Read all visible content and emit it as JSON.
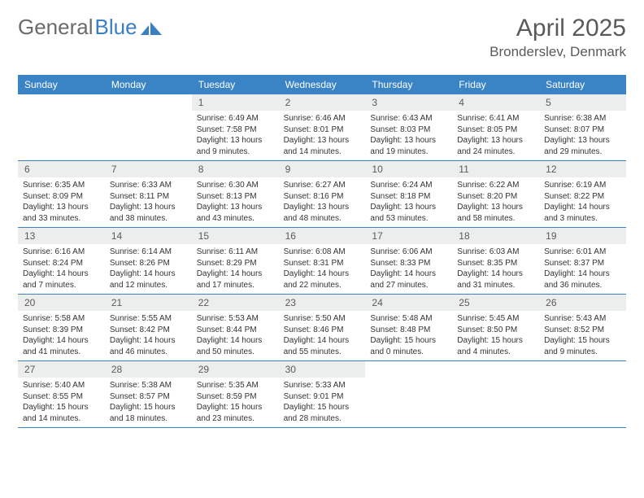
{
  "brand": {
    "part1": "General",
    "part2": "Blue"
  },
  "header": {
    "title": "April 2025",
    "location": "Bronderslev, Denmark"
  },
  "styling": {
    "header_bg": "#3a84c6",
    "header_fg": "#ffffff",
    "daynum_bg": "#eceded",
    "daynum_fg": "#5a5a5a",
    "week_border": "#3a84c6",
    "body_fg": "#333333",
    "title_fg": "#5a5a5a",
    "logo_gray": "#6b6b6b",
    "logo_blue": "#3a7fc4",
    "page_bg": "#ffffff",
    "month_title_fontsize": 30,
    "location_fontsize": 17,
    "dayhead_fontsize": 12,
    "daynum_fontsize": 12,
    "details_fontsize": 10
  },
  "dayNames": [
    "Sunday",
    "Monday",
    "Tuesday",
    "Wednesday",
    "Thursday",
    "Friday",
    "Saturday"
  ],
  "weeks": [
    [
      {
        "empty": true
      },
      {
        "empty": true
      },
      {
        "n": "1",
        "sunrise": "6:49 AM",
        "sunset": "7:58 PM",
        "daylight": "13 hours and 9 minutes."
      },
      {
        "n": "2",
        "sunrise": "6:46 AM",
        "sunset": "8:01 PM",
        "daylight": "13 hours and 14 minutes."
      },
      {
        "n": "3",
        "sunrise": "6:43 AM",
        "sunset": "8:03 PM",
        "daylight": "13 hours and 19 minutes."
      },
      {
        "n": "4",
        "sunrise": "6:41 AM",
        "sunset": "8:05 PM",
        "daylight": "13 hours and 24 minutes."
      },
      {
        "n": "5",
        "sunrise": "6:38 AM",
        "sunset": "8:07 PM",
        "daylight": "13 hours and 29 minutes."
      }
    ],
    [
      {
        "n": "6",
        "sunrise": "6:35 AM",
        "sunset": "8:09 PM",
        "daylight": "13 hours and 33 minutes."
      },
      {
        "n": "7",
        "sunrise": "6:33 AM",
        "sunset": "8:11 PM",
        "daylight": "13 hours and 38 minutes."
      },
      {
        "n": "8",
        "sunrise": "6:30 AM",
        "sunset": "8:13 PM",
        "daylight": "13 hours and 43 minutes."
      },
      {
        "n": "9",
        "sunrise": "6:27 AM",
        "sunset": "8:16 PM",
        "daylight": "13 hours and 48 minutes."
      },
      {
        "n": "10",
        "sunrise": "6:24 AM",
        "sunset": "8:18 PM",
        "daylight": "13 hours and 53 minutes."
      },
      {
        "n": "11",
        "sunrise": "6:22 AM",
        "sunset": "8:20 PM",
        "daylight": "13 hours and 58 minutes."
      },
      {
        "n": "12",
        "sunrise": "6:19 AM",
        "sunset": "8:22 PM",
        "daylight": "14 hours and 3 minutes."
      }
    ],
    [
      {
        "n": "13",
        "sunrise": "6:16 AM",
        "sunset": "8:24 PM",
        "daylight": "14 hours and 7 minutes."
      },
      {
        "n": "14",
        "sunrise": "6:14 AM",
        "sunset": "8:26 PM",
        "daylight": "14 hours and 12 minutes."
      },
      {
        "n": "15",
        "sunrise": "6:11 AM",
        "sunset": "8:29 PM",
        "daylight": "14 hours and 17 minutes."
      },
      {
        "n": "16",
        "sunrise": "6:08 AM",
        "sunset": "8:31 PM",
        "daylight": "14 hours and 22 minutes."
      },
      {
        "n": "17",
        "sunrise": "6:06 AM",
        "sunset": "8:33 PM",
        "daylight": "14 hours and 27 minutes."
      },
      {
        "n": "18",
        "sunrise": "6:03 AM",
        "sunset": "8:35 PM",
        "daylight": "14 hours and 31 minutes."
      },
      {
        "n": "19",
        "sunrise": "6:01 AM",
        "sunset": "8:37 PM",
        "daylight": "14 hours and 36 minutes."
      }
    ],
    [
      {
        "n": "20",
        "sunrise": "5:58 AM",
        "sunset": "8:39 PM",
        "daylight": "14 hours and 41 minutes."
      },
      {
        "n": "21",
        "sunrise": "5:55 AM",
        "sunset": "8:42 PM",
        "daylight": "14 hours and 46 minutes."
      },
      {
        "n": "22",
        "sunrise": "5:53 AM",
        "sunset": "8:44 PM",
        "daylight": "14 hours and 50 minutes."
      },
      {
        "n": "23",
        "sunrise": "5:50 AM",
        "sunset": "8:46 PM",
        "daylight": "14 hours and 55 minutes."
      },
      {
        "n": "24",
        "sunrise": "5:48 AM",
        "sunset": "8:48 PM",
        "daylight": "15 hours and 0 minutes."
      },
      {
        "n": "25",
        "sunrise": "5:45 AM",
        "sunset": "8:50 PM",
        "daylight": "15 hours and 4 minutes."
      },
      {
        "n": "26",
        "sunrise": "5:43 AM",
        "sunset": "8:52 PM",
        "daylight": "15 hours and 9 minutes."
      }
    ],
    [
      {
        "n": "27",
        "sunrise": "5:40 AM",
        "sunset": "8:55 PM",
        "daylight": "15 hours and 14 minutes."
      },
      {
        "n": "28",
        "sunrise": "5:38 AM",
        "sunset": "8:57 PM",
        "daylight": "15 hours and 18 minutes."
      },
      {
        "n": "29",
        "sunrise": "5:35 AM",
        "sunset": "8:59 PM",
        "daylight": "15 hours and 23 minutes."
      },
      {
        "n": "30",
        "sunrise": "5:33 AM",
        "sunset": "9:01 PM",
        "daylight": "15 hours and 28 minutes."
      },
      {
        "empty": true
      },
      {
        "empty": true
      },
      {
        "empty": true
      }
    ]
  ]
}
